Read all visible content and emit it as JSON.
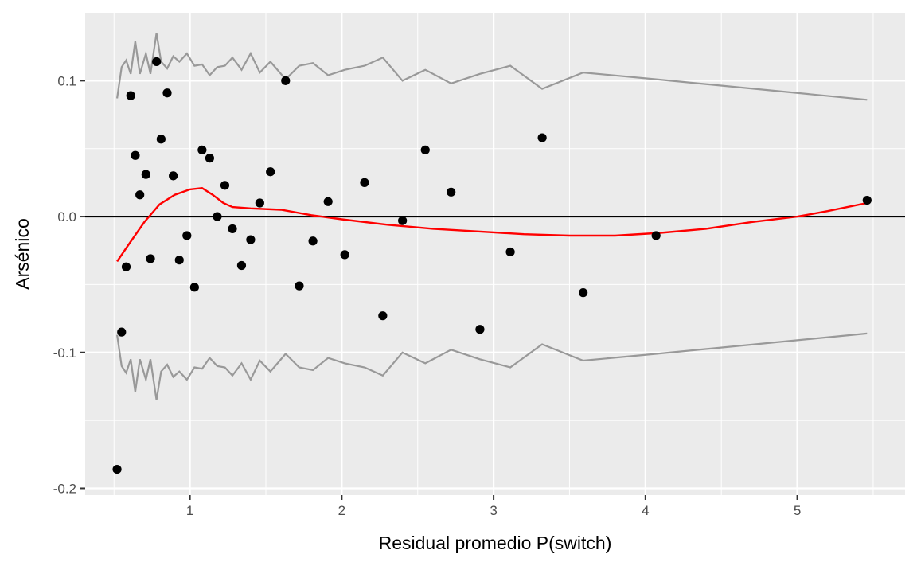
{
  "chart_data": {
    "type": "scatter",
    "title": "",
    "xlabel": "Residual promedio P(switch)",
    "ylabel": "Arsénico",
    "xlim": [
      0.31,
      5.71
    ],
    "ylim": [
      -0.205,
      0.15
    ],
    "grid": true,
    "legend": "none",
    "x_ticks": [
      1,
      2,
      3,
      4,
      5
    ],
    "x_tick_labels": [
      "1",
      "2",
      "3",
      "4",
      "5"
    ],
    "x_minor_ticks": [
      0.5,
      1.5,
      2.5,
      3.5,
      4.5,
      5.5
    ],
    "y_ticks": [
      -0.2,
      -0.1,
      0.0,
      0.1
    ],
    "y_tick_labels": [
      "-0.2",
      "-0.1",
      "0.0",
      "0.1"
    ],
    "y_minor_ticks": [
      -0.15,
      -0.05,
      0.05
    ],
    "colors": {
      "panel": "#ebebeb",
      "grid": "#ffffff",
      "points": "#000000",
      "bounds": "#999999",
      "smooth": "#ff0000",
      "zero_line": "#000000"
    },
    "points": [
      {
        "x": 0.52,
        "y": -0.186
      },
      {
        "x": 0.55,
        "y": -0.085
      },
      {
        "x": 0.58,
        "y": -0.037
      },
      {
        "x": 0.61,
        "y": 0.089
      },
      {
        "x": 0.64,
        "y": 0.045
      },
      {
        "x": 0.67,
        "y": 0.016
      },
      {
        "x": 0.71,
        "y": 0.031
      },
      {
        "x": 0.74,
        "y": -0.031
      },
      {
        "x": 0.78,
        "y": 0.114
      },
      {
        "x": 0.81,
        "y": 0.057
      },
      {
        "x": 0.85,
        "y": 0.091
      },
      {
        "x": 0.89,
        "y": 0.03
      },
      {
        "x": 0.93,
        "y": -0.032
      },
      {
        "x": 0.98,
        "y": -0.014
      },
      {
        "x": 1.03,
        "y": -0.052
      },
      {
        "x": 1.08,
        "y": 0.049
      },
      {
        "x": 1.13,
        "y": 0.043
      },
      {
        "x": 1.18,
        "y": 0.0
      },
      {
        "x": 1.23,
        "y": 0.023
      },
      {
        "x": 1.28,
        "y": -0.009
      },
      {
        "x": 1.34,
        "y": -0.036
      },
      {
        "x": 1.4,
        "y": -0.017
      },
      {
        "x": 1.46,
        "y": 0.01
      },
      {
        "x": 1.53,
        "y": 0.033
      },
      {
        "x": 1.63,
        "y": 0.1
      },
      {
        "x": 1.72,
        "y": -0.051
      },
      {
        "x": 1.81,
        "y": -0.018
      },
      {
        "x": 1.91,
        "y": 0.011
      },
      {
        "x": 2.02,
        "y": -0.028
      },
      {
        "x": 2.15,
        "y": 0.025
      },
      {
        "x": 2.27,
        "y": -0.073
      },
      {
        "x": 2.4,
        "y": -0.003
      },
      {
        "x": 2.55,
        "y": 0.049
      },
      {
        "x": 2.72,
        "y": 0.018
      },
      {
        "x": 2.91,
        "y": -0.083
      },
      {
        "x": 3.11,
        "y": -0.026
      },
      {
        "x": 3.32,
        "y": 0.058
      },
      {
        "x": 3.59,
        "y": -0.056
      },
      {
        "x": 4.07,
        "y": -0.014
      },
      {
        "x": 5.46,
        "y": 0.012
      }
    ],
    "upper_bound": [
      {
        "x": 0.52,
        "y": 0.087
      },
      {
        "x": 0.55,
        "y": 0.11
      },
      {
        "x": 0.58,
        "y": 0.115
      },
      {
        "x": 0.61,
        "y": 0.105
      },
      {
        "x": 0.64,
        "y": 0.129
      },
      {
        "x": 0.67,
        "y": 0.105
      },
      {
        "x": 0.71,
        "y": 0.12
      },
      {
        "x": 0.74,
        "y": 0.105
      },
      {
        "x": 0.78,
        "y": 0.135
      },
      {
        "x": 0.81,
        "y": 0.114
      },
      {
        "x": 0.85,
        "y": 0.109
      },
      {
        "x": 0.89,
        "y": 0.118
      },
      {
        "x": 0.93,
        "y": 0.114
      },
      {
        "x": 0.98,
        "y": 0.12
      },
      {
        "x": 1.03,
        "y": 0.111
      },
      {
        "x": 1.08,
        "y": 0.112
      },
      {
        "x": 1.13,
        "y": 0.104
      },
      {
        "x": 1.18,
        "y": 0.11
      },
      {
        "x": 1.23,
        "y": 0.111
      },
      {
        "x": 1.28,
        "y": 0.117
      },
      {
        "x": 1.34,
        "y": 0.108
      },
      {
        "x": 1.4,
        "y": 0.12
      },
      {
        "x": 1.46,
        "y": 0.106
      },
      {
        "x": 1.53,
        "y": 0.114
      },
      {
        "x": 1.63,
        "y": 0.101
      },
      {
        "x": 1.72,
        "y": 0.111
      },
      {
        "x": 1.81,
        "y": 0.113
      },
      {
        "x": 1.91,
        "y": 0.104
      },
      {
        "x": 2.02,
        "y": 0.108
      },
      {
        "x": 2.15,
        "y": 0.111
      },
      {
        "x": 2.27,
        "y": 0.117
      },
      {
        "x": 2.4,
        "y": 0.1
      },
      {
        "x": 2.55,
        "y": 0.108
      },
      {
        "x": 2.72,
        "y": 0.098
      },
      {
        "x": 2.91,
        "y": 0.105
      },
      {
        "x": 3.11,
        "y": 0.111
      },
      {
        "x": 3.32,
        "y": 0.094
      },
      {
        "x": 3.59,
        "y": 0.106
      },
      {
        "x": 4.07,
        "y": 0.101
      },
      {
        "x": 5.46,
        "y": 0.086
      }
    ],
    "lower_bound": [
      {
        "x": 0.52,
        "y": -0.087
      },
      {
        "x": 0.55,
        "y": -0.11
      },
      {
        "x": 0.58,
        "y": -0.115
      },
      {
        "x": 0.61,
        "y": -0.105
      },
      {
        "x": 0.64,
        "y": -0.129
      },
      {
        "x": 0.67,
        "y": -0.105
      },
      {
        "x": 0.71,
        "y": -0.12
      },
      {
        "x": 0.74,
        "y": -0.105
      },
      {
        "x": 0.78,
        "y": -0.135
      },
      {
        "x": 0.81,
        "y": -0.114
      },
      {
        "x": 0.85,
        "y": -0.109
      },
      {
        "x": 0.89,
        "y": -0.118
      },
      {
        "x": 0.93,
        "y": -0.114
      },
      {
        "x": 0.98,
        "y": -0.12
      },
      {
        "x": 1.03,
        "y": -0.111
      },
      {
        "x": 1.08,
        "y": -0.112
      },
      {
        "x": 1.13,
        "y": -0.104
      },
      {
        "x": 1.18,
        "y": -0.11
      },
      {
        "x": 1.23,
        "y": -0.111
      },
      {
        "x": 1.28,
        "y": -0.117
      },
      {
        "x": 1.34,
        "y": -0.108
      },
      {
        "x": 1.4,
        "y": -0.12
      },
      {
        "x": 1.46,
        "y": -0.106
      },
      {
        "x": 1.53,
        "y": -0.114
      },
      {
        "x": 1.63,
        "y": -0.101
      },
      {
        "x": 1.72,
        "y": -0.111
      },
      {
        "x": 1.81,
        "y": -0.113
      },
      {
        "x": 1.91,
        "y": -0.104
      },
      {
        "x": 2.02,
        "y": -0.108
      },
      {
        "x": 2.15,
        "y": -0.111
      },
      {
        "x": 2.27,
        "y": -0.117
      },
      {
        "x": 2.4,
        "y": -0.1
      },
      {
        "x": 2.55,
        "y": -0.108
      },
      {
        "x": 2.72,
        "y": -0.098
      },
      {
        "x": 2.91,
        "y": -0.105
      },
      {
        "x": 3.11,
        "y": -0.111
      },
      {
        "x": 3.32,
        "y": -0.094
      },
      {
        "x": 3.59,
        "y": -0.106
      },
      {
        "x": 4.07,
        "y": -0.101
      },
      {
        "x": 5.46,
        "y": -0.086
      }
    ],
    "smooth_curve": [
      {
        "x": 0.52,
        "y": -0.033
      },
      {
        "x": 0.6,
        "y": -0.02
      },
      {
        "x": 0.7,
        "y": -0.004
      },
      {
        "x": 0.8,
        "y": 0.009
      },
      {
        "x": 0.9,
        "y": 0.016
      },
      {
        "x": 1.0,
        "y": 0.02
      },
      {
        "x": 1.08,
        "y": 0.021
      },
      {
        "x": 1.15,
        "y": 0.016
      },
      {
        "x": 1.22,
        "y": 0.01
      },
      {
        "x": 1.28,
        "y": 0.007
      },
      {
        "x": 1.4,
        "y": 0.006
      },
      {
        "x": 1.6,
        "y": 0.005
      },
      {
        "x": 1.8,
        "y": 0.001
      },
      {
        "x": 2.0,
        "y": -0.002
      },
      {
        "x": 2.3,
        "y": -0.006
      },
      {
        "x": 2.6,
        "y": -0.009
      },
      {
        "x": 2.9,
        "y": -0.011
      },
      {
        "x": 3.2,
        "y": -0.013
      },
      {
        "x": 3.5,
        "y": -0.014
      },
      {
        "x": 3.8,
        "y": -0.014
      },
      {
        "x": 4.1,
        "y": -0.012
      },
      {
        "x": 4.4,
        "y": -0.009
      },
      {
        "x": 4.7,
        "y": -0.004
      },
      {
        "x": 5.0,
        "y": 0.0
      },
      {
        "x": 5.2,
        "y": 0.004
      },
      {
        "x": 5.46,
        "y": 0.01
      }
    ],
    "reference_line_y": 0.0
  }
}
